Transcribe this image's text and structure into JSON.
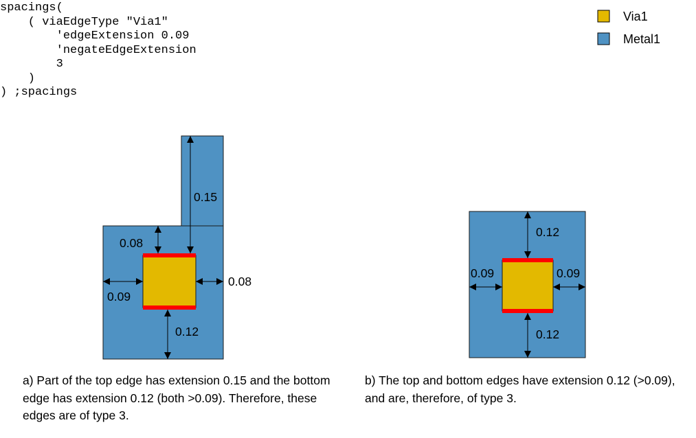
{
  "code_lines": [
    "spacings(",
    "    ( viaEdgeType \"Via1\"",
    "        'edgeExtension 0.09",
    "        'negateEdgeExtension",
    "        3",
    "    )",
    ") ;spacings"
  ],
  "legend": [
    {
      "label": "Via1",
      "color": "#e3b900"
    },
    {
      "label": "Metal1",
      "color": "#4f92c3"
    }
  ],
  "colors": {
    "metal": "#4f92c3",
    "via": "#e3b900",
    "edge": "#ff0000",
    "outline": "#1a1a1a"
  },
  "figure_a": {
    "labels": {
      "top_ext": "0.15",
      "top_short": "0.08",
      "right": "0.08",
      "left": "0.09",
      "bottom": "0.12"
    },
    "caption": "a) Part of the top edge has extension 0.15 and the bottom edge has extension 0.12 (both >0.09). Therefore, these edges are of type 3."
  },
  "figure_b": {
    "labels": {
      "top": "0.12",
      "left": "0.09",
      "right": "0.09",
      "bottom": "0.12"
    },
    "caption": "b) The top and bottom edges have extension 0.12 (>0.09), and are, therefore, of type 3."
  }
}
